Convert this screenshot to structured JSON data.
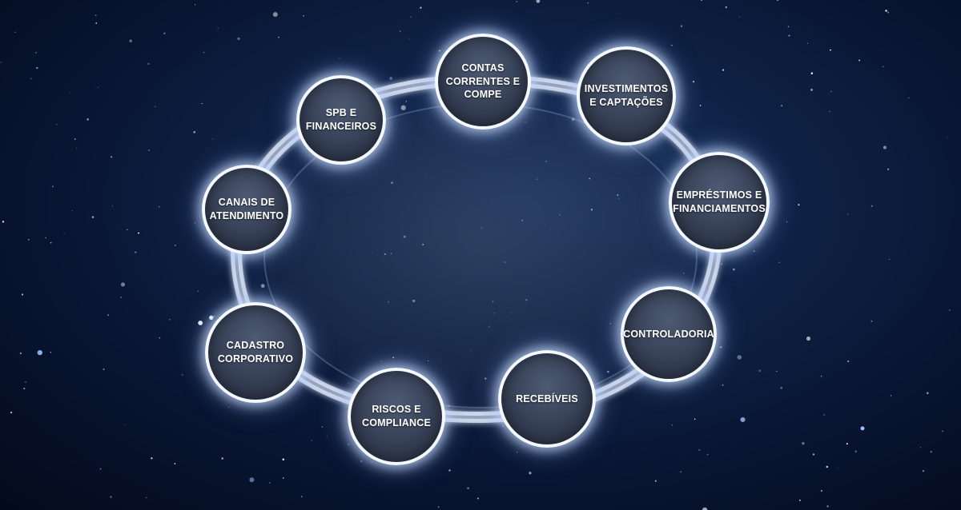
{
  "diagram": {
    "nodes": [
      {
        "id": "contas",
        "label": "CONTAS\nCORRENTES E\nCOMPE"
      },
      {
        "id": "investimentos",
        "label": "INVESTIMENTOS\nE CAPTAÇÕES"
      },
      {
        "id": "emprestimos",
        "label": "EMPRÉSTIMOS E\nFINANCIAMENTOS"
      },
      {
        "id": "controladoria",
        "label": "CONTROLADORIA"
      },
      {
        "id": "recebiveis",
        "label": "RECEBÍVEIS"
      },
      {
        "id": "riscos",
        "label": "RISCOS E\nCOMPLIANCE"
      },
      {
        "id": "cadastro",
        "label": "CADASTRO\nCORPORATIVO"
      },
      {
        "id": "canais",
        "label": "CANAIS DE\nATENDIMENTO"
      },
      {
        "id": "spb",
        "label": "SPB E\nFINANCEIROS"
      }
    ]
  },
  "colors": {
    "background": "#0f2246",
    "node_fill": "#333d52",
    "node_border": "#f4f8ff",
    "ring": "#cfd8ea",
    "text": "#ffffff"
  }
}
